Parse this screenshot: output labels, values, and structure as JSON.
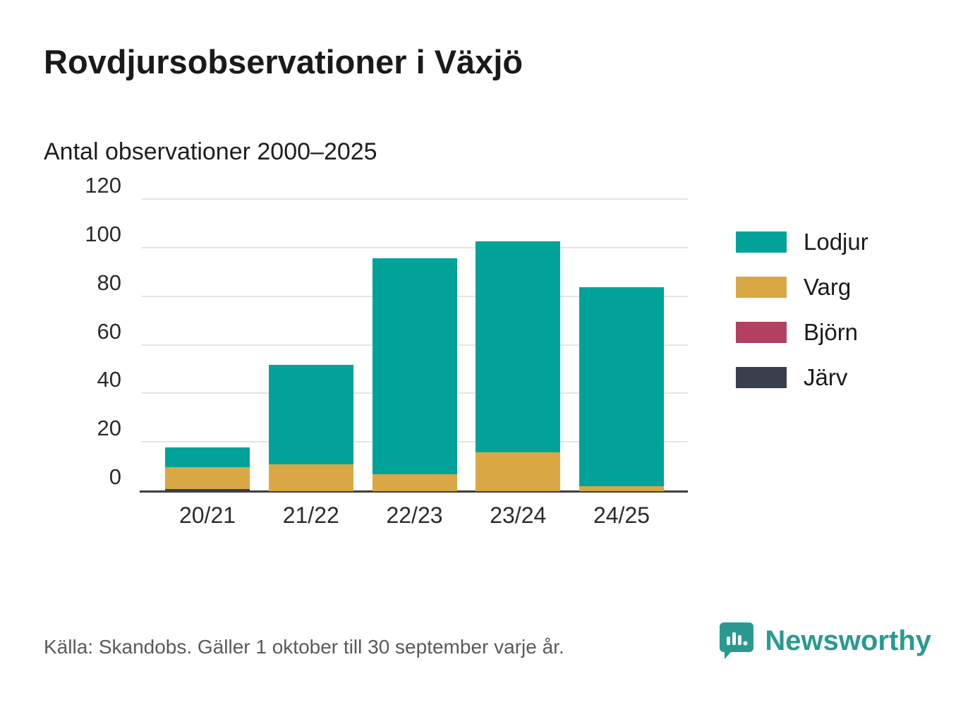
{
  "header": {
    "title": "Rovdjursobservationer i Växjö",
    "subtitle": "Antal observationer 2000–2025"
  },
  "footer": {
    "source": "Källa: Skandobs. Gäller 1 oktober till 30 september varje år.",
    "brand_name": "Newsworthy",
    "brand_color": "#2a9a90"
  },
  "chart_data": {
    "type": "bar",
    "stacked": true,
    "title": "Rovdjursobservationer i Växjö",
    "subtitle": "Antal observationer 2000–2025",
    "categories": [
      "20/21",
      "21/22",
      "22/23",
      "23/24",
      "24/25"
    ],
    "series": [
      {
        "name": "Järv",
        "color": "#3b3f4c",
        "values": [
          1,
          0,
          0,
          0,
          0
        ]
      },
      {
        "name": "Björn",
        "color": "#b24060",
        "values": [
          0,
          0,
          0,
          0,
          0
        ]
      },
      {
        "name": "Varg",
        "color": "#d9a845",
        "values": [
          9,
          11,
          7,
          16,
          2
        ]
      },
      {
        "name": "Lodjur",
        "color": "#00a29a",
        "values": [
          8,
          41,
          89,
          87,
          82
        ]
      }
    ],
    "totals": [
      18,
      52,
      96,
      103,
      84
    ],
    "legend_order": [
      "Lodjur",
      "Varg",
      "Björn",
      "Järv"
    ],
    "legend_position": "right",
    "yticks": [
      0,
      20,
      40,
      60,
      80,
      100,
      120
    ],
    "ylim": [
      0,
      120
    ],
    "grid": true,
    "xlabel": "",
    "ylabel": ""
  }
}
